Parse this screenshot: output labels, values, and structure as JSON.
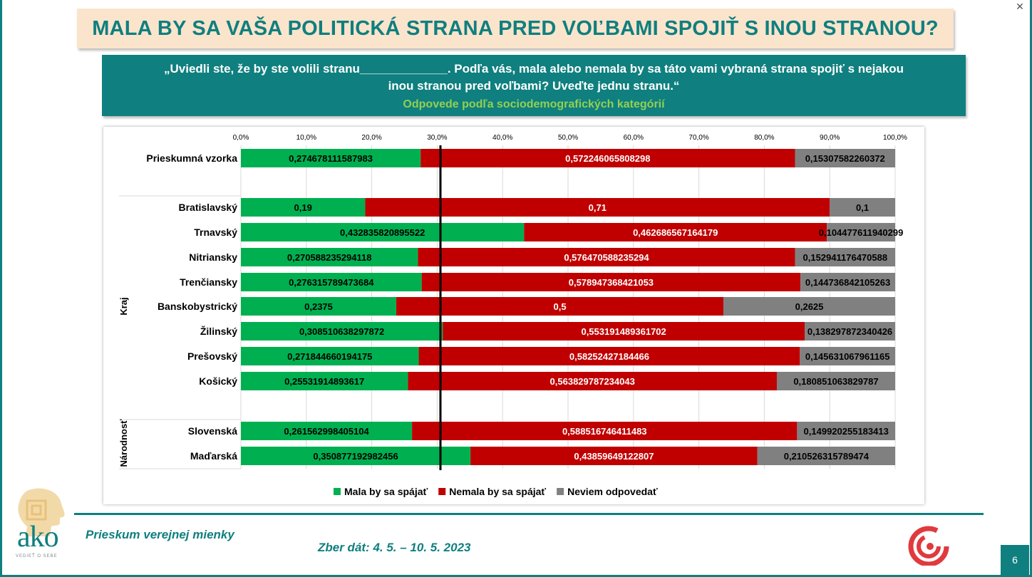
{
  "header": {
    "title": "MALA BY SA VAŠA POLITICKÁ STRANA PRED VOĽBAMI SPOJIŤ S INOU STRANOU?",
    "question_line1": "„Uviedli ste, že by ste volili stranu_____________. Podľa vás, mala alebo nemala by sa táto vami vybraná strana spojiť s nejakou",
    "question_line2": "inou stranou pred voľbami? Uveďte jednu stranu.“",
    "subtitle": "Odpovede podľa sociodemografických kategórií"
  },
  "footer": {
    "left": "Prieskum verejnej mienky",
    "center": "Zber dát: 4. 5. – 10. 5. 2023",
    "page_number": "6",
    "logo_text": "ako",
    "logo_tagline": "VEDIEŤ O SEBE"
  },
  "icons": {
    "close": "close-icon",
    "logo": "ako-logo-icon",
    "brand": "swirl-logo-icon"
  },
  "colors": {
    "teal": "#0f7f7f",
    "title_bg": "#fbe4cc",
    "subtitle_green": "#92d050",
    "mala": "#00b050",
    "nemala": "#c00000",
    "neviem": "#808080"
  },
  "chart_data": {
    "type": "bar",
    "orientation": "horizontal",
    "stacked": "100%",
    "x_ticks": [
      "0,0%",
      "10,0%",
      "20,0%",
      "30,0%",
      "40,0%",
      "50,0%",
      "60,0%",
      "70,0%",
      "80,0%",
      "90,0%",
      "100,0%"
    ],
    "xlim": [
      0,
      1
    ],
    "reference_line": 0.305,
    "group_labels": [
      "Kraj",
      "Národnosť"
    ],
    "categories": [
      "Prieskumná vzorka",
      "Bratislavský",
      "Trnavský",
      "Nitriansky",
      "Trenčiansky",
      "Banskobystrický",
      "Žilinský",
      "Prešovský",
      "Košický",
      "Slovenská",
      "Maďarská"
    ],
    "series": [
      {
        "name": "Mala by sa spájať",
        "color": "#00b050",
        "values": [
          0.274678111587983,
          0.19,
          0.432835820895522,
          0.270588235294118,
          0.276315789473684,
          0.2375,
          0.308510638297872,
          0.271844660194175,
          0.25531914893617,
          0.261562998405104,
          0.350877192982456
        ],
        "labels": [
          "0,274678111587983",
          "0,19",
          "0,432835820895522",
          "0,270588235294118",
          "0,276315789473684",
          "0,2375",
          "0,308510638297872",
          "0,271844660194175",
          "0,25531914893617",
          "0,261562998405104",
          "0,350877192982456"
        ]
      },
      {
        "name": "Nemala by sa spájať",
        "color": "#c00000",
        "values": [
          0.572246065808298,
          0.71,
          0.462686567164179,
          0.576470588235294,
          0.578947368421053,
          0.5,
          0.553191489361702,
          0.58252427184466,
          0.563829787234043,
          0.588516746411483,
          0.43859649122807
        ],
        "labels": [
          "0,572246065808298",
          "0,71",
          "0,462686567164179",
          "0,576470588235294",
          "0,578947368421053",
          "0,5",
          "0,553191489361702",
          "0,58252427184466",
          "0,563829787234043",
          "0,588516746411483",
          "0,43859649122807"
        ]
      },
      {
        "name": "Neviem odpovedať",
        "color": "#808080",
        "values": [
          0.15307582260372,
          0.1,
          0.104477611940299,
          0.152941176470588,
          0.144736842105263,
          0.2625,
          0.138297872340426,
          0.145631067961165,
          0.180851063829787,
          0.149920255183413,
          0.210526315789474
        ],
        "labels": [
          "0,15307582260372",
          "0,1",
          "0,104477611940299",
          "0,152941176470588",
          "0,144736842105263",
          "0,2625",
          "0,138297872340426",
          "0,145631067961165",
          "0,180851063829787",
          "0,149920255183413",
          "0,210526315789474"
        ]
      }
    ]
  }
}
